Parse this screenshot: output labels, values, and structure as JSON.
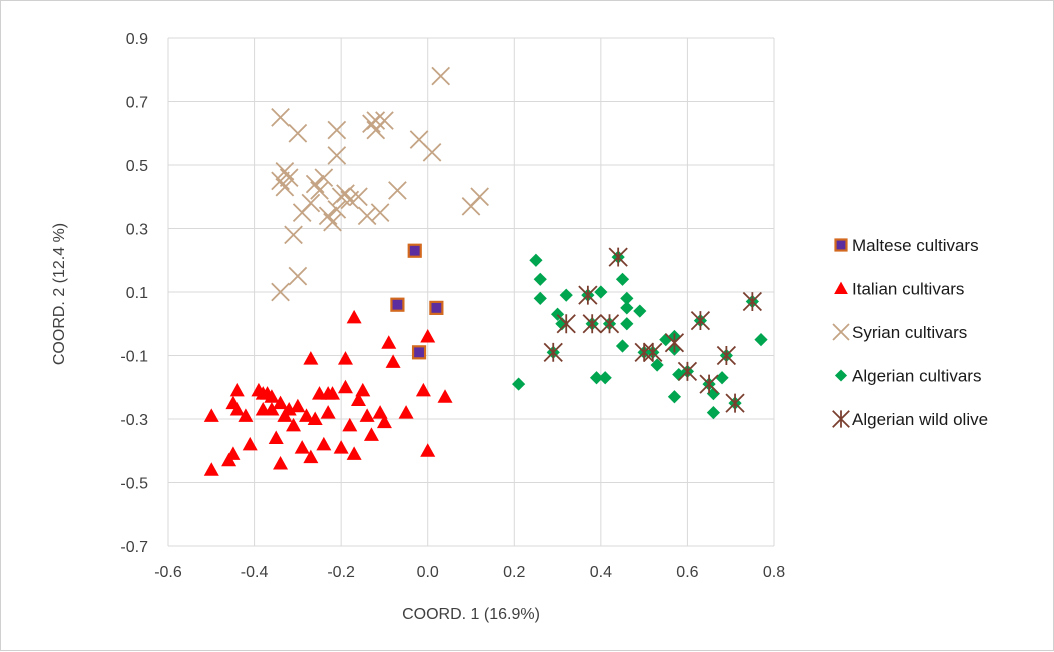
{
  "chart_data": {
    "type": "scatter",
    "xlabel": "COORD. 1 (16.9%)",
    "ylabel": "COORD. 2 (12.4 %)",
    "xlim": [
      -0.6,
      0.8
    ],
    "ylim": [
      -0.7,
      0.9
    ],
    "xticks": [
      "-0.6",
      "-0.4",
      "-0.2",
      "0.0",
      "0.2",
      "0.4",
      "0.6",
      "0.8"
    ],
    "yticks": [
      "0.9",
      "0.7",
      "0.5",
      "0.3",
      "0.1",
      "-0.1",
      "-0.3",
      "-0.5",
      "-0.7"
    ],
    "grid": "major gridlines on",
    "legend_position": "right",
    "series": [
      {
        "name": "Maltese cultivars",
        "marker": "square",
        "color": "#5b2d9e",
        "edge_color": "#d2691e",
        "points": [
          [
            -0.03,
            0.23
          ],
          [
            -0.07,
            0.06
          ],
          [
            0.02,
            0.05
          ],
          [
            -0.02,
            -0.09
          ]
        ]
      },
      {
        "name": "Italian cultivars",
        "marker": "triangle",
        "color": "#ff0000",
        "points": [
          [
            -0.5,
            -0.29
          ],
          [
            -0.5,
            -0.46
          ],
          [
            -0.46,
            -0.43
          ],
          [
            -0.45,
            -0.41
          ],
          [
            -0.44,
            -0.21
          ],
          [
            -0.45,
            -0.25
          ],
          [
            -0.44,
            -0.27
          ],
          [
            -0.42,
            -0.29
          ],
          [
            -0.41,
            -0.38
          ],
          [
            -0.39,
            -0.21
          ],
          [
            -0.38,
            -0.22
          ],
          [
            -0.38,
            -0.27
          ],
          [
            -0.37,
            -0.22
          ],
          [
            -0.36,
            -0.27
          ],
          [
            -0.36,
            -0.23
          ],
          [
            -0.35,
            -0.36
          ],
          [
            -0.34,
            -0.44
          ],
          [
            -0.34,
            -0.25
          ],
          [
            -0.33,
            -0.29
          ],
          [
            -0.32,
            -0.27
          ],
          [
            -0.31,
            -0.32
          ],
          [
            -0.3,
            -0.26
          ],
          [
            -0.29,
            -0.39
          ],
          [
            -0.28,
            -0.29
          ],
          [
            -0.27,
            -0.42
          ],
          [
            -0.27,
            -0.11
          ],
          [
            -0.26,
            -0.3
          ],
          [
            -0.25,
            -0.22
          ],
          [
            -0.24,
            -0.38
          ],
          [
            -0.23,
            -0.28
          ],
          [
            -0.23,
            -0.22
          ],
          [
            -0.22,
            -0.22
          ],
          [
            -0.2,
            -0.39
          ],
          [
            -0.19,
            -0.11
          ],
          [
            -0.19,
            -0.2
          ],
          [
            -0.18,
            -0.32
          ],
          [
            -0.17,
            0.02
          ],
          [
            -0.17,
            -0.41
          ],
          [
            -0.16,
            -0.24
          ],
          [
            -0.15,
            -0.21
          ],
          [
            -0.14,
            -0.29
          ],
          [
            -0.13,
            -0.35
          ],
          [
            -0.11,
            -0.28
          ],
          [
            -0.1,
            -0.31
          ],
          [
            -0.09,
            -0.06
          ],
          [
            -0.08,
            -0.12
          ],
          [
            -0.05,
            -0.28
          ],
          [
            -0.01,
            -0.21
          ],
          [
            0.0,
            -0.04
          ],
          [
            0.0,
            -0.4
          ],
          [
            0.04,
            -0.23
          ]
        ]
      },
      {
        "name": "Syrian cultivars",
        "marker": "x",
        "color": "#c4a484",
        "points": [
          [
            -0.34,
            0.65
          ],
          [
            -0.3,
            0.6
          ],
          [
            -0.21,
            0.61
          ],
          [
            -0.21,
            0.53
          ],
          [
            -0.13,
            0.63
          ],
          [
            -0.12,
            0.61
          ],
          [
            -0.12,
            0.64
          ],
          [
            -0.1,
            0.64
          ],
          [
            -0.02,
            0.58
          ],
          [
            0.01,
            0.54
          ],
          [
            0.03,
            0.78
          ],
          [
            -0.33,
            0.48
          ],
          [
            -0.34,
            0.45
          ],
          [
            -0.33,
            0.43
          ],
          [
            -0.32,
            0.46
          ],
          [
            -0.29,
            0.35
          ],
          [
            -0.27,
            0.38
          ],
          [
            -0.26,
            0.44
          ],
          [
            -0.25,
            0.42
          ],
          [
            -0.24,
            0.46
          ],
          [
            -0.23,
            0.34
          ],
          [
            -0.22,
            0.32
          ],
          [
            -0.21,
            0.36
          ],
          [
            -0.2,
            0.4
          ],
          [
            -0.19,
            0.41
          ],
          [
            -0.18,
            0.39
          ],
          [
            -0.16,
            0.4
          ],
          [
            -0.14,
            0.34
          ],
          [
            -0.11,
            0.35
          ],
          [
            -0.07,
            0.42
          ],
          [
            -0.31,
            0.28
          ],
          [
            -0.3,
            0.15
          ],
          [
            -0.34,
            0.1
          ],
          [
            0.1,
            0.37
          ],
          [
            0.12,
            0.4
          ]
        ]
      },
      {
        "name": "Algerian cultivars",
        "marker": "diamond",
        "color": "#00a550",
        "points": [
          [
            0.21,
            -0.19
          ],
          [
            0.25,
            0.2
          ],
          [
            0.26,
            0.14
          ],
          [
            0.26,
            0.08
          ],
          [
            0.3,
            0.03
          ],
          [
            0.32,
            0.09
          ],
          [
            0.31,
            0.0
          ],
          [
            0.29,
            -0.09
          ],
          [
            0.37,
            0.09
          ],
          [
            0.38,
            0.0
          ],
          [
            0.39,
            -0.17
          ],
          [
            0.4,
            0.1
          ],
          [
            0.41,
            -0.17
          ],
          [
            0.42,
            0.0
          ],
          [
            0.44,
            0.21
          ],
          [
            0.45,
            0.14
          ],
          [
            0.46,
            0.08
          ],
          [
            0.46,
            0.05
          ],
          [
            0.46,
            0.0
          ],
          [
            0.45,
            -0.07
          ],
          [
            0.49,
            0.04
          ],
          [
            0.5,
            -0.09
          ],
          [
            0.52,
            -0.09
          ],
          [
            0.53,
            -0.13
          ],
          [
            0.55,
            -0.05
          ],
          [
            0.57,
            -0.04
          ],
          [
            0.57,
            -0.08
          ],
          [
            0.58,
            -0.16
          ],
          [
            0.57,
            -0.23
          ],
          [
            0.6,
            -0.15
          ],
          [
            0.63,
            0.01
          ],
          [
            0.65,
            -0.19
          ],
          [
            0.66,
            -0.22
          ],
          [
            0.66,
            -0.28
          ],
          [
            0.68,
            -0.17
          ],
          [
            0.69,
            -0.1
          ],
          [
            0.71,
            -0.25
          ],
          [
            0.75,
            0.07
          ],
          [
            0.77,
            -0.05
          ]
        ]
      },
      {
        "name": "Algerian wild olive",
        "marker": "asterisk",
        "color": "#7b3f30",
        "points": [
          [
            0.29,
            -0.09
          ],
          [
            0.32,
            0.0
          ],
          [
            0.37,
            0.09
          ],
          [
            0.38,
            0.0
          ],
          [
            0.42,
            0.0
          ],
          [
            0.44,
            0.21
          ],
          [
            0.5,
            -0.09
          ],
          [
            0.52,
            -0.09
          ],
          [
            0.57,
            -0.06
          ],
          [
            0.6,
            -0.15
          ],
          [
            0.63,
            0.01
          ],
          [
            0.65,
            -0.19
          ],
          [
            0.69,
            -0.1
          ],
          [
            0.71,
            -0.25
          ],
          [
            0.75,
            0.07
          ]
        ]
      }
    ]
  }
}
